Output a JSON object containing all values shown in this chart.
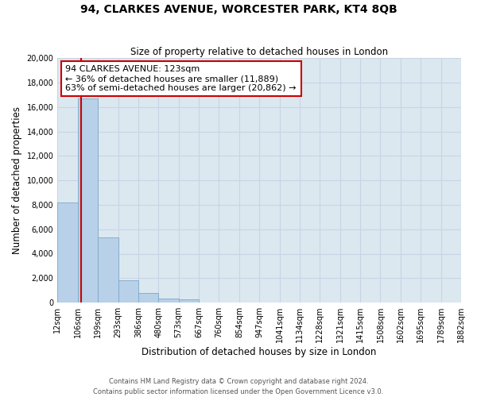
{
  "title": "94, CLARKES AVENUE, WORCESTER PARK, KT4 8QB",
  "subtitle": "Size of property relative to detached houses in London",
  "xlabel": "Distribution of detached houses by size in London",
  "ylabel": "Number of detached properties",
  "bar_labels": [
    "12sqm",
    "106sqm",
    "199sqm",
    "293sqm",
    "386sqm",
    "480sqm",
    "573sqm",
    "667sqm",
    "760sqm",
    "854sqm",
    "947sqm",
    "1041sqm",
    "1134sqm",
    "1228sqm",
    "1321sqm",
    "1415sqm",
    "1508sqm",
    "1602sqm",
    "1695sqm",
    "1789sqm",
    "1882sqm"
  ],
  "bar_heights": [
    8200,
    16700,
    5300,
    1800,
    800,
    300,
    280,
    0,
    0,
    0,
    0,
    0,
    0,
    0,
    0,
    0,
    0,
    0,
    0,
    0,
    0
  ],
  "bar_color": "#b8d0e8",
  "bar_edgecolor": "#7aaac8",
  "property_line_x": 123,
  "property_line_color": "#cc0000",
  "annotation_title": "94 CLARKES AVENUE: 123sqm",
  "annotation_line1": "← 36% of detached houses are smaller (11,889)",
  "annotation_line2": "63% of semi-detached houses are larger (20,862) →",
  "annotation_box_color": "#ffffff",
  "annotation_box_edgecolor": "#cc0000",
  "ylim": [
    0,
    20000
  ],
  "yticks": [
    0,
    2000,
    4000,
    6000,
    8000,
    10000,
    12000,
    14000,
    16000,
    18000,
    20000
  ],
  "grid_color": "#c8d4e4",
  "bg_color": "#dce8f0",
  "footer1": "Contains HM Land Registry data © Crown copyright and database right 2024.",
  "footer2": "Contains public sector information licensed under the Open Government Licence v3.0.",
  "bin_edges": [
    12,
    106,
    199,
    293,
    386,
    480,
    573,
    667,
    760,
    854,
    947,
    1041,
    1134,
    1228,
    1321,
    1415,
    1508,
    1602,
    1695,
    1789,
    1882
  ]
}
